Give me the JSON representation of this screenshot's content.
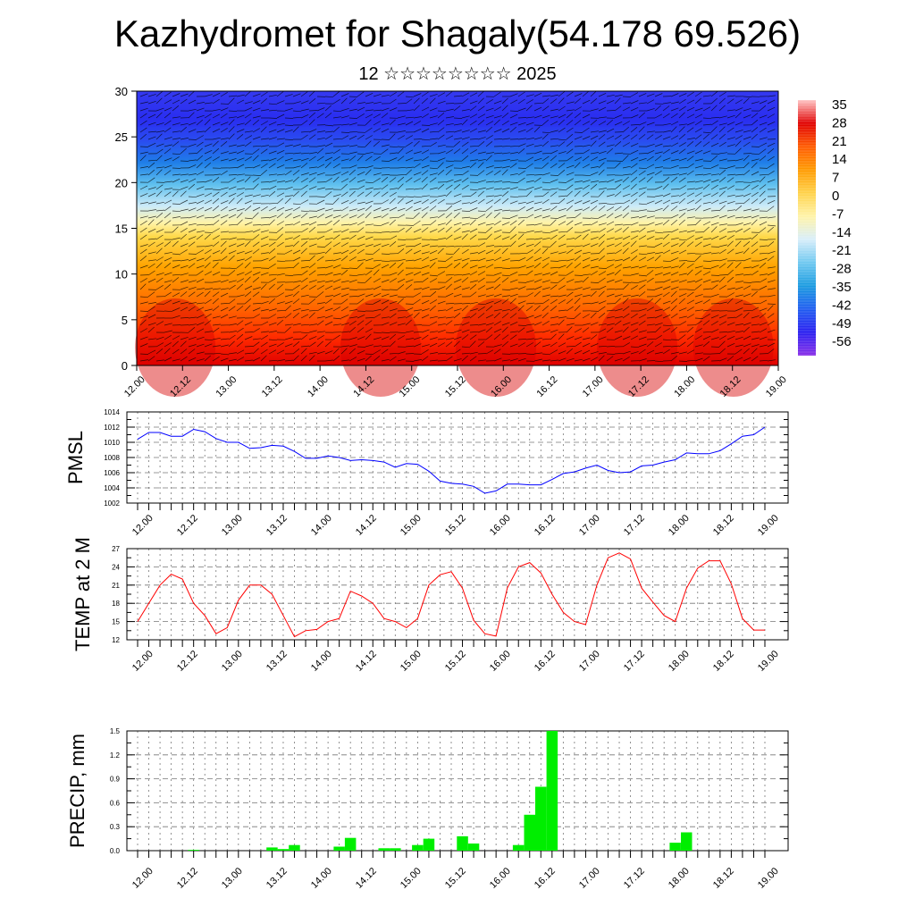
{
  "title": "Kazhydromet for Shagaly(54.178 69.526)",
  "subtitle": "12 ☆☆☆☆☆☆☆☆ 2025",
  "time_labels": [
    "12.00",
    "12.12",
    "13.00",
    "13.12",
    "14.00",
    "14.12",
    "15.00",
    "15.12",
    "16.00",
    "16.12",
    "17.00",
    "17.12",
    "18.00",
    "18.12",
    "19.00"
  ],
  "chart_data": [
    {
      "type": "heatmap",
      "name": "upper-air-temperature-wind",
      "ylim": [
        0,
        30
      ],
      "y_ticks": [
        0,
        5,
        10,
        15,
        20,
        25,
        30
      ],
      "colorbar": {
        "labels": [
          "35",
          "28",
          "21",
          "14",
          "7",
          "0",
          "-7",
          "-14",
          "-21",
          "-28",
          "-35",
          "-42",
          "-49",
          "-56"
        ],
        "colors": [
          "#ffc4c4",
          "#e00000",
          "#ff5a00",
          "#ff9a00",
          "#ffd24a",
          "#fff3a8",
          "#d8eefa",
          "#6fc8f0",
          "#1a9be0",
          "#1f5cf0",
          "#2a1ff0",
          "#8a30e8"
        ]
      }
    },
    {
      "type": "line",
      "name": "pmsl",
      "ylabel": "PMSL",
      "ylim": [
        1002,
        1014
      ],
      "y_ticks": [
        1002,
        1004,
        1006,
        1008,
        1010,
        1012,
        1014
      ],
      "color": "#0000ff",
      "values": [
        1010.4,
        1011.3,
        1011.3,
        1010.8,
        1010.8,
        1011.7,
        1011.4,
        1010.5,
        1010.0,
        1010.0,
        1009.2,
        1009.3,
        1009.6,
        1009.5,
        1008.8,
        1007.9,
        1007.9,
        1008.2,
        1008.0,
        1007.6,
        1007.7,
        1007.6,
        1007.4,
        1006.7,
        1007.2,
        1007.1,
        1006.2,
        1004.9,
        1004.6,
        1004.5,
        1004.2,
        1003.3,
        1003.6,
        1004.5,
        1004.5,
        1004.4,
        1004.4,
        1005.1,
        1005.9,
        1006.1,
        1006.6,
        1007.0,
        1006.3,
        1006.0,
        1006.1,
        1006.9,
        1007.0,
        1007.4,
        1007.7,
        1008.6,
        1008.5,
        1008.5,
        1008.9,
        1009.8,
        1010.8,
        1011.0,
        1012.0
      ]
    },
    {
      "type": "line",
      "name": "temp-2m",
      "ylabel": "TEMP at 2 M",
      "ylim": [
        12,
        27
      ],
      "y_ticks": [
        12,
        15,
        18,
        21,
        24,
        27
      ],
      "color": "#ff0000",
      "values": [
        15.0,
        18.0,
        21.0,
        22.8,
        22.0,
        18.0,
        16.0,
        13.0,
        14.0,
        18.5,
        21.0,
        21.0,
        19.5,
        16.0,
        12.5,
        13.5,
        13.7,
        15.0,
        15.5,
        20.0,
        19.2,
        18.0,
        15.5,
        15.0,
        14.0,
        15.5,
        21.0,
        22.7,
        23.2,
        20.5,
        15.2,
        13.0,
        12.6,
        20.5,
        24.0,
        24.7,
        23.0,
        19.5,
        16.5,
        15.0,
        14.5,
        21.0,
        25.5,
        26.3,
        25.3,
        20.5,
        18.2,
        16.0,
        15.0,
        20.5,
        23.8,
        25.0,
        25.0,
        21.2,
        15.5,
        13.6,
        13.6
      ]
    },
    {
      "type": "bar",
      "name": "precipitation",
      "ylabel": "PRECIP, mm",
      "ylim": [
        0,
        1.5
      ],
      "y_ticks": [
        0.0,
        0.3,
        0.6,
        0.9,
        1.2,
        1.5
      ],
      "y_tick_labels": [
        "0.0",
        "0.3",
        "0.6",
        "0.9",
        "1.2",
        "1.5"
      ],
      "color": "#00ee00",
      "values": [
        0,
        0,
        0,
        0,
        0,
        0.01,
        0,
        0,
        0,
        0,
        0,
        0,
        0.04,
        0.02,
        0.07,
        0,
        0,
        0,
        0.05,
        0.16,
        0,
        0,
        0.03,
        0.03,
        0,
        0.07,
        0.15,
        0,
        0,
        0.18,
        0.09,
        0,
        0,
        0,
        0.07,
        0.45,
        0.8,
        1.5,
        0,
        0,
        0,
        0,
        0,
        0,
        0,
        0,
        0,
        0,
        0.1,
        0.23,
        0,
        0,
        0,
        0,
        0,
        0,
        0
      ]
    }
  ]
}
